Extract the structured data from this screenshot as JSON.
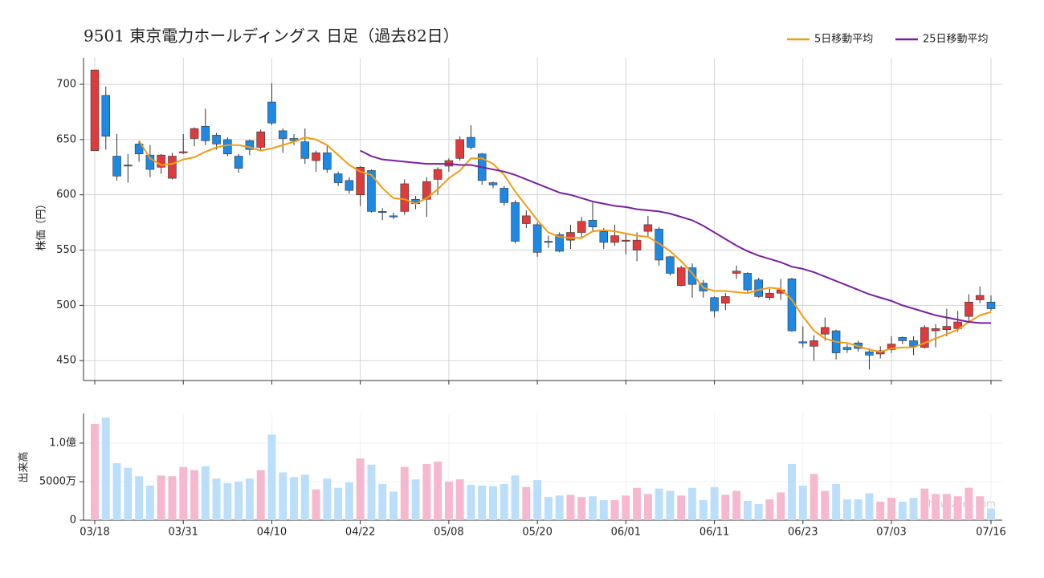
{
  "title": "9501 東京電力ホールディングス  日足（過去82日）",
  "watermark": "show-zeet.com",
  "chart_data": [
    {
      "type": "candlestick",
      "ylabel": "株価（円）",
      "ylim": [
        432,
        724
      ],
      "yticks": [
        450,
        500,
        550,
        600,
        650,
        700
      ],
      "grid": true,
      "up_color": "#e03a3a",
      "down_color": "#1e88e5",
      "legend": "upper right",
      "open": [
        640,
        690,
        635,
        627,
        646,
        636,
        625,
        615,
        638,
        651,
        662,
        654,
        650,
        635,
        649,
        643,
        684,
        658,
        651,
        648,
        631,
        638,
        619,
        613,
        600,
        622,
        585,
        581,
        585,
        596,
        596,
        614,
        626,
        633,
        652,
        637,
        611,
        606,
        593,
        574,
        573,
        558,
        564,
        559,
        566,
        577,
        567,
        557,
        558,
        550,
        567,
        569,
        544,
        518,
        534,
        520,
        507,
        502,
        529,
        529,
        523,
        507,
        511,
        524,
        467,
        463,
        474,
        477,
        462,
        466,
        458,
        456,
        460,
        471,
        468,
        462,
        477,
        478,
        479,
        490,
        505,
        503
      ],
      "high": [
        713,
        698,
        655,
        637,
        649,
        645,
        637,
        638,
        655,
        661,
        678,
        656,
        652,
        637,
        650,
        659,
        701,
        660,
        655,
        660,
        640,
        644,
        621,
        616,
        626,
        623,
        588,
        584,
        614,
        599,
        616,
        625,
        633,
        653,
        663,
        638,
        612,
        608,
        595,
        586,
        575,
        563,
        566,
        573,
        580,
        593,
        570,
        573,
        565,
        566,
        581,
        571,
        545,
        536,
        538,
        523,
        508,
        511,
        536,
        530,
        525,
        515,
        524,
        525,
        481,
        473,
        489,
        478,
        465,
        468,
        461,
        463,
        472,
        472,
        472,
        482,
        483,
        497,
        495,
        510,
        517,
        509
      ],
      "low": [
        640,
        641,
        613,
        611,
        630,
        616,
        619,
        614,
        637,
        644,
        645,
        641,
        635,
        620,
        636,
        640,
        663,
        638,
        645,
        628,
        621,
        620,
        608,
        601,
        590,
        584,
        577,
        578,
        582,
        587,
        580,
        600,
        621,
        631,
        641,
        609,
        606,
        590,
        556,
        570,
        544,
        552,
        548,
        551,
        561,
        566,
        551,
        554,
        546,
        540,
        562,
        536,
        527,
        517,
        507,
        507,
        489,
        496,
        524,
        512,
        507,
        505,
        505,
        476,
        462,
        450,
        468,
        451,
        457,
        458,
        442,
        452,
        457,
        465,
        455,
        461,
        462,
        472,
        476,
        484,
        502,
        495
      ],
      "close": [
        713,
        653,
        617,
        626,
        637,
        623,
        636,
        635,
        639,
        660,
        649,
        646,
        637,
        624,
        641,
        657,
        665,
        651,
        649,
        633,
        638,
        623,
        611,
        604,
        625,
        585,
        584,
        580,
        610,
        592,
        612,
        623,
        631,
        650,
        643,
        613,
        609,
        593,
        558,
        581,
        548,
        557,
        549,
        566,
        576,
        571,
        557,
        563,
        559,
        559,
        573,
        541,
        529,
        534,
        519,
        513,
        495,
        508,
        531,
        514,
        508,
        511,
        514,
        477,
        466,
        468,
        480,
        457,
        460,
        461,
        455,
        459,
        465,
        468,
        463,
        480,
        479,
        481,
        485,
        503,
        509,
        497
      ],
      "series": [
        {
          "name": "5日移動平均",
          "color": "#f39c12",
          "values": [
            null,
            null,
            null,
            null,
            649,
            633,
            627,
            628,
            632,
            634,
            639,
            643,
            645,
            645,
            643,
            640,
            642,
            645,
            648,
            652,
            650,
            645,
            636,
            627,
            621,
            618,
            606,
            597,
            596,
            592,
            597,
            605,
            615,
            622,
            633,
            633,
            628,
            618,
            603,
            590,
            577,
            566,
            562,
            561,
            561,
            567,
            568,
            567,
            565,
            563,
            562,
            556,
            549,
            540,
            529,
            516,
            513,
            513,
            512,
            511,
            514,
            516,
            515,
            505,
            490,
            477,
            470,
            467,
            466,
            463,
            460,
            458,
            461,
            462,
            462,
            466,
            470,
            474,
            478,
            485,
            491,
            494
          ]
        },
        {
          "name": "25日移動平均",
          "color": "#7b1fa2",
          "values": [
            null,
            null,
            null,
            null,
            null,
            null,
            null,
            null,
            null,
            null,
            null,
            null,
            null,
            null,
            null,
            null,
            null,
            null,
            null,
            null,
            null,
            null,
            null,
            null,
            640,
            635,
            632,
            631,
            630,
            629,
            628,
            628,
            628,
            627,
            627,
            625,
            623,
            621,
            618,
            614,
            610,
            606,
            602,
            600,
            597,
            594,
            592,
            590,
            589,
            587,
            586,
            585,
            583,
            580,
            577,
            572,
            566,
            560,
            554,
            549,
            545,
            542,
            539,
            535,
            533,
            530,
            526,
            522,
            518,
            514,
            510,
            507,
            504,
            500,
            497,
            494,
            491,
            489,
            487,
            485,
            484,
            484
          ]
        }
      ]
    },
    {
      "type": "bar",
      "ylabel": "出来高",
      "ylim": [
        0,
        138500000
      ],
      "yticks": [
        0,
        {
          "value": 50000000,
          "label": "5000万"
        },
        {
          "value": 100000000,
          "label": "1.0億"
        }
      ],
      "up_color": "#f5b8cf",
      "down_color": "#bbdefb",
      "categories": [
        "03/18",
        null,
        null,
        null,
        null,
        null,
        null,
        null,
        "03/31",
        null,
        null,
        null,
        null,
        null,
        null,
        null,
        "04/10",
        null,
        null,
        null,
        null,
        null,
        null,
        null,
        "04/22",
        null,
        null,
        null,
        null,
        null,
        null,
        null,
        "05/08",
        null,
        null,
        null,
        null,
        null,
        null,
        null,
        "05/20",
        null,
        null,
        null,
        null,
        null,
        null,
        null,
        "06/01",
        null,
        null,
        null,
        null,
        null,
        null,
        null,
        "06/11",
        null,
        null,
        null,
        null,
        null,
        null,
        null,
        "06/23",
        null,
        null,
        null,
        null,
        null,
        null,
        null,
        "07/03",
        null,
        null,
        null,
        null,
        null,
        null,
        null,
        null,
        "07/16"
      ],
      "values": [
        125000000,
        133000000,
        74000000,
        68000000,
        57000000,
        45000000,
        58000000,
        57000000,
        69000000,
        65000000,
        70000000,
        54000000,
        48000000,
        50000000,
        54000000,
        65000000,
        111000000,
        62000000,
        56000000,
        59000000,
        40000000,
        54000000,
        42000000,
        49000000,
        80000000,
        72000000,
        47000000,
        37000000,
        69000000,
        53000000,
        73000000,
        76000000,
        50000000,
        53000000,
        46000000,
        45000000,
        44000000,
        47000000,
        58000000,
        43000000,
        52000000,
        30000000,
        32000000,
        33000000,
        30000000,
        31000000,
        26000000,
        26000000,
        32000000,
        42000000,
        34000000,
        41000000,
        38000000,
        32000000,
        42000000,
        26000000,
        43000000,
        33000000,
        38000000,
        25000000,
        21000000,
        27000000,
        36000000,
        73000000,
        45000000,
        60000000,
        38000000,
        47000000,
        27000000,
        27000000,
        35000000,
        24000000,
        29000000,
        24000000,
        29000000,
        41000000,
        34000000,
        34000000,
        31000000,
        42000000,
        31000000,
        15000000
      ]
    }
  ]
}
